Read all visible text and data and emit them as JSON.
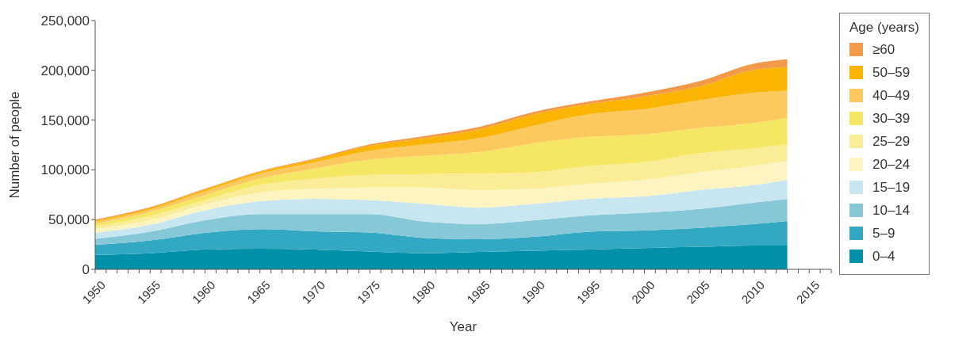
{
  "chart_data": {
    "type": "area",
    "stacked": true,
    "xlabel": "Year",
    "ylabel": "Number of people",
    "legend_title": "Age (years)",
    "legend": "right",
    "grid": false,
    "x": [
      1950,
      1955,
      1960,
      1965,
      1970,
      1975,
      1980,
      1985,
      1990,
      1995,
      2000,
      2005,
      2010,
      2013
    ],
    "series": [
      {
        "name": "0–4",
        "color": "#0090aa",
        "values": [
          14500,
          16200,
          20000,
          20800,
          20000,
          18000,
          16200,
          17500,
          18800,
          20000,
          21300,
          22600,
          23900,
          23900
        ]
      },
      {
        "name": "5–9",
        "color": "#32a8c2",
        "values": [
          10100,
          12800,
          16600,
          19600,
          18300,
          19100,
          15300,
          12800,
          14000,
          17900,
          17800,
          19100,
          21600,
          24600
        ]
      },
      {
        "name": "10–14",
        "color": "#86c8d8",
        "values": [
          6100,
          8900,
          12700,
          15200,
          17300,
          18500,
          16500,
          15200,
          16500,
          16400,
          17800,
          19000,
          21600,
          22400
        ]
      },
      {
        "name": "15–19",
        "color": "#c8e6ef",
        "values": [
          5900,
          6800,
          10100,
          12800,
          15300,
          14000,
          17800,
          16500,
          16500,
          16600,
          16500,
          19000,
          17700,
          19000
        ]
      },
      {
        "name": "20–24",
        "color": "#fdf4c2",
        "values": [
          3800,
          4600,
          5900,
          8800,
          10100,
          12700,
          16500,
          17700,
          15200,
          15200,
          16500,
          17900,
          19100,
          19100
        ]
      },
      {
        "name": "25–29",
        "color": "#f9ee97",
        "values": [
          3000,
          4300,
          4300,
          7600,
          10200,
          12700,
          13500,
          16600,
          16600,
          17800,
          17800,
          19000,
          17800,
          16500
        ]
      },
      {
        "name": "30–39",
        "color": "#f5e663",
        "values": [
          2600,
          4100,
          5100,
          6400,
          10200,
          15300,
          18300,
          21700,
          29200,
          29200,
          28000,
          25500,
          25400,
          26700
        ]
      },
      {
        "name": "40–49",
        "color": "#fdc85e",
        "values": [
          2000,
          2500,
          3800,
          5100,
          6300,
          8900,
          11400,
          13900,
          17800,
          22900,
          25400,
          27900,
          30500,
          27400
        ]
      },
      {
        "name": "50–59",
        "color": "#fbb400",
        "values": [
          1000,
          1300,
          1800,
          1800,
          2600,
          5000,
          6400,
          8900,
          11400,
          10200,
          12700,
          13900,
          22900,
          23900
        ]
      },
      {
        "name": "≥60",
        "color": "#f29a4a",
        "values": [
          1000,
          1000,
          700,
          700,
          1200,
          1300,
          2000,
          2500,
          2500,
          2500,
          3800,
          5100,
          6300,
          7600
        ]
      }
    ],
    "xlim": [
      1950,
      2017
    ],
    "xticks": [
      1950,
      {
        "value": 1951,
        "label": null
      },
      {
        "value": 1952,
        "label": null
      },
      {
        "value": 1953,
        "label": null
      },
      {
        "value": 1954,
        "label": null
      },
      1955,
      {
        "value": 1956,
        "label": null
      },
      {
        "value": 1957,
        "label": null
      },
      {
        "value": 1958,
        "label": null
      },
      {
        "value": 1959,
        "label": null
      },
      1960,
      {
        "value": 1961,
        "label": null
      },
      {
        "value": 1962,
        "label": null
      },
      {
        "value": 1963,
        "label": null
      },
      {
        "value": 1964,
        "label": null
      },
      1965,
      {
        "value": 1966,
        "label": null
      },
      {
        "value": 1967,
        "label": null
      },
      {
        "value": 1968,
        "label": null
      },
      {
        "value": 1969,
        "label": null
      },
      1970,
      {
        "value": 1971,
        "label": null
      },
      {
        "value": 1972,
        "label": null
      },
      {
        "value": 1973,
        "label": null
      },
      {
        "value": 1974,
        "label": null
      },
      1975,
      {
        "value": 1976,
        "label": null
      },
      {
        "value": 1977,
        "label": null
      },
      {
        "value": 1978,
        "label": null
      },
      {
        "value": 1979,
        "label": null
      },
      1980,
      {
        "value": 1981,
        "label": null
      },
      {
        "value": 1982,
        "label": null
      },
      {
        "value": 1983,
        "label": null
      },
      {
        "value": 1984,
        "label": null
      },
      1985,
      {
        "value": 1986,
        "label": null
      },
      {
        "value": 1987,
        "label": null
      },
      {
        "value": 1988,
        "label": null
      },
      {
        "value": 1989,
        "label": null
      },
      1990,
      {
        "value": 1991,
        "label": null
      },
      {
        "value": 1992,
        "label": null
      },
      {
        "value": 1993,
        "label": null
      },
      {
        "value": 1994,
        "label": null
      },
      1995,
      {
        "value": 1996,
        "label": null
      },
      {
        "value": 1997,
        "label": null
      },
      {
        "value": 1998,
        "label": null
      },
      {
        "value": 1999,
        "label": null
      },
      2000,
      {
        "value": 2001,
        "label": null
      },
      {
        "value": 2002,
        "label": null
      },
      {
        "value": 2003,
        "label": null
      },
      {
        "value": 2004,
        "label": null
      },
      2005,
      {
        "value": 2006,
        "label": null
      },
      {
        "value": 2007,
        "label": null
      },
      {
        "value": 2008,
        "label": null
      },
      {
        "value": 2009,
        "label": null
      },
      2010,
      {
        "value": 2011,
        "label": null
      },
      {
        "value": 2012,
        "label": null
      },
      {
        "value": 2013,
        "label": null
      },
      {
        "value": 2014,
        "label": null
      },
      2015,
      {
        "value": 2016,
        "label": null
      },
      {
        "value": 2017,
        "label": null
      }
    ],
    "ylim": [
      0,
      250000
    ],
    "yticks": [
      0,
      {
        "value": 50000,
        "label": "50,000"
      },
      {
        "value": 100000,
        "label": "100,000"
      },
      {
        "value": 150000,
        "label": "150,000"
      },
      {
        "value": 200000,
        "label": "200,000"
      },
      {
        "value": 250000,
        "label": "250,000"
      }
    ]
  }
}
